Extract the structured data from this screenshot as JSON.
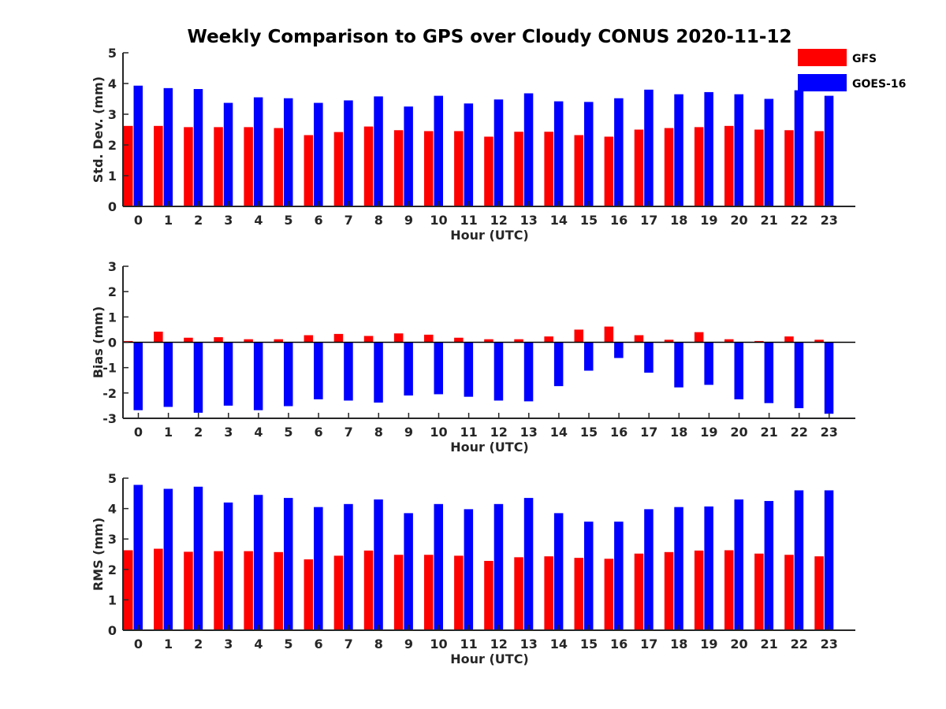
{
  "title": "Weekly Comparison to GPS over Cloudy CONUS 2020-11-12",
  "colors": {
    "GFS": "#ff0000",
    "GOES-16": "#0000ff"
  },
  "legend": {
    "placement": "top-right",
    "entries": [
      "GFS",
      "GOES-16"
    ]
  },
  "chart_data": [
    {
      "type": "bar",
      "xlabel": "Hour (UTC)",
      "ylabel": "Std. Dev. (mm)",
      "ylim": [
        0,
        5
      ],
      "yticks": [
        0,
        1,
        2,
        3,
        4,
        5
      ],
      "categories": [
        "0",
        "1",
        "2",
        "3",
        "4",
        "5",
        "6",
        "7",
        "8",
        "9",
        "10",
        "11",
        "12",
        "13",
        "14",
        "15",
        "16",
        "17",
        "18",
        "19",
        "20",
        "21",
        "22",
        "23"
      ],
      "series": [
        {
          "name": "GFS",
          "values": [
            2.62,
            2.62,
            2.58,
            2.58,
            2.58,
            2.55,
            2.32,
            2.42,
            2.6,
            2.48,
            2.45,
            2.45,
            2.27,
            2.43,
            2.43,
            2.32,
            2.27,
            2.5,
            2.55,
            2.58,
            2.62,
            2.5,
            2.48,
            2.45
          ]
        },
        {
          "name": "GOES-16",
          "values": [
            3.93,
            3.85,
            3.82,
            3.37,
            3.55,
            3.52,
            3.37,
            3.45,
            3.58,
            3.25,
            3.6,
            3.35,
            3.48,
            3.68,
            3.42,
            3.4,
            3.52,
            3.8,
            3.65,
            3.72,
            3.65,
            3.5,
            3.78,
            3.6
          ]
        }
      ]
    },
    {
      "type": "bar",
      "xlabel": "Hour (UTC)",
      "ylabel": "Bias (mm)",
      "ylim": [
        -3,
        3
      ],
      "yticks": [
        -3,
        -2,
        -1,
        0,
        1,
        2,
        3
      ],
      "categories": [
        "0",
        "1",
        "2",
        "3",
        "4",
        "5",
        "6",
        "7",
        "8",
        "9",
        "10",
        "11",
        "12",
        "13",
        "14",
        "15",
        "16",
        "17",
        "18",
        "19",
        "20",
        "21",
        "22",
        "23"
      ],
      "series": [
        {
          "name": "GFS",
          "values": [
            0.05,
            0.42,
            0.18,
            0.2,
            0.12,
            0.12,
            0.28,
            0.33,
            0.25,
            0.35,
            0.3,
            0.18,
            0.12,
            0.12,
            0.23,
            0.5,
            0.62,
            0.28,
            0.1,
            0.4,
            0.12,
            0.05,
            0.23,
            0.1
          ]
        },
        {
          "name": "GOES-16",
          "values": [
            -2.68,
            -2.55,
            -2.78,
            -2.5,
            -2.68,
            -2.52,
            -2.25,
            -2.3,
            -2.38,
            -2.1,
            -2.05,
            -2.15,
            -2.3,
            -2.33,
            -1.73,
            -1.12,
            -0.62,
            -1.2,
            -1.78,
            -1.68,
            -2.25,
            -2.4,
            -2.6,
            -2.82
          ]
        }
      ]
    },
    {
      "type": "bar",
      "xlabel": "Hour (UTC)",
      "ylabel": "RMS (mm)",
      "ylim": [
        0,
        5
      ],
      "yticks": [
        0,
        1,
        2,
        3,
        4,
        5
      ],
      "categories": [
        "0",
        "1",
        "2",
        "3",
        "4",
        "5",
        "6",
        "7",
        "8",
        "9",
        "10",
        "11",
        "12",
        "13",
        "14",
        "15",
        "16",
        "17",
        "18",
        "19",
        "20",
        "21",
        "22",
        "23"
      ],
      "series": [
        {
          "name": "GFS",
          "values": [
            2.63,
            2.68,
            2.58,
            2.6,
            2.6,
            2.57,
            2.33,
            2.45,
            2.62,
            2.48,
            2.48,
            2.45,
            2.28,
            2.4,
            2.43,
            2.38,
            2.35,
            2.52,
            2.57,
            2.62,
            2.63,
            2.52,
            2.48,
            2.43
          ]
        },
        {
          "name": "GOES-16",
          "values": [
            4.78,
            4.65,
            4.72,
            4.2,
            4.45,
            4.35,
            4.05,
            4.15,
            4.3,
            3.85,
            4.15,
            3.98,
            4.15,
            4.35,
            3.85,
            3.57,
            3.57,
            3.98,
            4.05,
            4.07,
            4.3,
            4.25,
            4.6,
            4.6
          ]
        }
      ]
    }
  ]
}
